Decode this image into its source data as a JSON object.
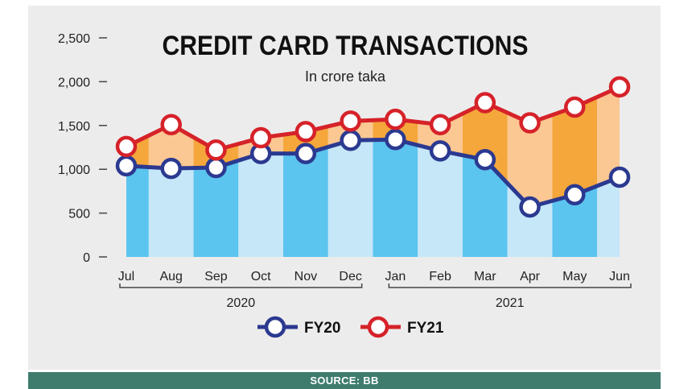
{
  "chart_data": {
    "type": "area",
    "title": "CREDIT CARD TRANSACTIONS",
    "subtitle": "In crore taka",
    "categories": [
      "Jul",
      "Aug",
      "Sep",
      "Oct",
      "Nov",
      "Dec",
      "Jan",
      "Feb",
      "Mar",
      "Apr",
      "May",
      "Jun"
    ],
    "year_groups": [
      {
        "label": "2020",
        "from": "Jul",
        "to": "Dec"
      },
      {
        "label": "2021",
        "from": "Jan",
        "to": "Jun"
      }
    ],
    "series": [
      {
        "name": "FY20",
        "values": [
          1040,
          1010,
          1020,
          1180,
          1180,
          1330,
          1340,
          1210,
          1110,
          570,
          710,
          910
        ],
        "color": "#2b3990",
        "fill": [
          "#5bc4ef",
          "#c5e7f8"
        ]
      },
      {
        "name": "FY21",
        "values": [
          1260,
          1510,
          1220,
          1360,
          1430,
          1550,
          1570,
          1510,
          1760,
          1530,
          1710,
          1940
        ],
        "color": "#d62229",
        "fill": [
          "#f5a73b",
          "#fbc792"
        ]
      }
    ],
    "yticks": [
      0,
      500,
      1000,
      1500,
      2000,
      2500
    ],
    "ytick_labels": [
      "0",
      "500",
      "1,000",
      "1,500",
      "2,000",
      "2,500"
    ],
    "ylim": [
      0,
      2500
    ],
    "legend_position": "bottom-center",
    "grid": false
  },
  "source_label": "SOURCE: BB"
}
